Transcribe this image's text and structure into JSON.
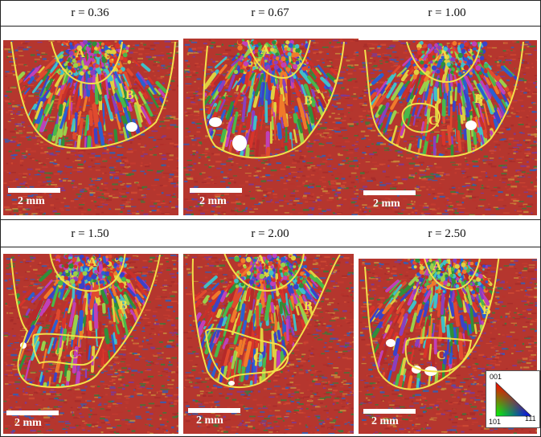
{
  "panels": [
    {
      "title": "r = 0.36",
      "scale_label": "2 mm",
      "zones": [
        "A",
        "B"
      ]
    },
    {
      "title": "r = 0.67",
      "scale_label": "2 mm",
      "zones": [
        "A",
        "B"
      ]
    },
    {
      "title": "r = 1.00",
      "scale_label": "2 mm",
      "zones": [
        "A",
        "B",
        "C"
      ]
    },
    {
      "title": "r = 1.50",
      "scale_label": "2 mm",
      "zones": [
        "A",
        "B",
        "C"
      ]
    },
    {
      "title": "r = 2.00",
      "scale_label": "2 mm",
      "zones": [
        "A",
        "B",
        "C"
      ]
    },
    {
      "title": "r = 2.50",
      "scale_label": "2 mm",
      "zones": [
        "A",
        "B",
        "C"
      ]
    }
  ],
  "legend": {
    "top": "001",
    "bottom_left": "101",
    "bottom_right": "111"
  },
  "colors": {
    "boundary": "#f2e14a",
    "base_metal": "#c23a2e",
    "label": "#f0e04a"
  }
}
